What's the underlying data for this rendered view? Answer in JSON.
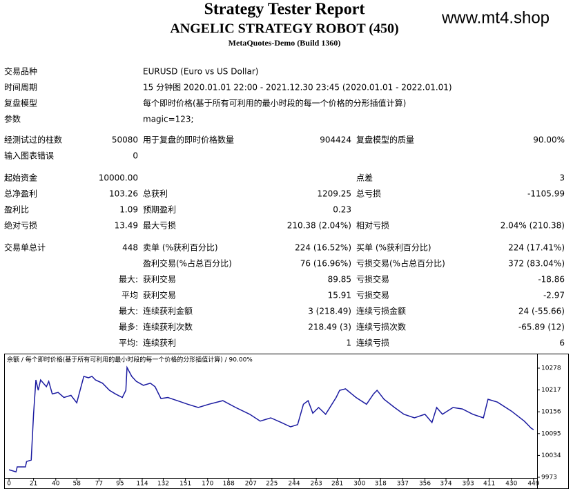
{
  "header": {
    "title": "Strategy Tester Report",
    "subtitle": "ANGELIC STRATEGY ROBOT (450)",
    "build": "MetaQuotes-Demo (Build 1360)",
    "site": "www.mt4.shop"
  },
  "table": {
    "rows": [
      {
        "l1": "交易品种",
        "l2": "EURUSD (Euro vs US Dollar)"
      },
      {
        "l1": "时间周期",
        "l2": "15 分钟图 2020.01.01 22:00 - 2021.12.30 23:45 (2020.01.01 - 2022.01.01)"
      },
      {
        "l1": "复盘模型",
        "l2": "每个即时价格(基于所有可利用的最小时段的每一个价格的分形插值计算)"
      },
      {
        "l1": "参数",
        "l2": "magic=123;"
      },
      {
        "l1": "经测试过的柱数",
        "v1": "50080",
        "l2": "用于复盘的即时价格数量",
        "v2": "904424",
        "l3": "复盘模型的质量",
        "v3": "90.00%"
      },
      {
        "l1": "输入图表错误",
        "v1": "0"
      },
      {
        "l1": "起始资金",
        "v1": "10000.00",
        "l3": "点差",
        "v3": "3"
      },
      {
        "l1": "总净盈利",
        "v1": "103.26",
        "l2": "总获利",
        "v2": "1209.25",
        "l3": "总亏损",
        "v3": "-1105.99"
      },
      {
        "l1": "盈利比",
        "v1": "1.09",
        "l2": "预期盈利",
        "v2": "0.23"
      },
      {
        "l1": "绝对亏损",
        "v1": "13.49",
        "l2": "最大亏损",
        "v2": "210.38 (2.04%)",
        "l3": "相对亏损",
        "v3": "2.04% (210.38)"
      },
      {
        "l1": "交易单总计",
        "v1": "448",
        "l2": "卖单 (%获利百分比)",
        "v2": "224 (16.52%)",
        "l3": "买单 (%获利百分比)",
        "v3": "224 (17.41%)"
      },
      {
        "l2": "盈利交易(%占总百分比)",
        "v2": "76 (16.96%)",
        "l3": "亏损交易(%占总百分比)",
        "v3": "372 (83.04%)"
      },
      {
        "v1": "最大:",
        "l2": "获利交易",
        "v2": "89.85",
        "l3": "亏损交易",
        "v3": "-18.86"
      },
      {
        "v1": "平均",
        "l2": "获利交易",
        "v2": "15.91",
        "l3": "亏损交易",
        "v3": "-2.97"
      },
      {
        "v1": "最大:",
        "l2": "连续获利金额",
        "v2": "3 (218.49)",
        "l3": "连续亏损金额",
        "v3": "24 (-55.66)"
      },
      {
        "v1": "最多:",
        "l2": "连续获利次数",
        "v2": "218.49 (3)",
        "l3": "连续亏损次数",
        "v3": "-65.89 (12)"
      },
      {
        "v1": "平均:",
        "l2": "连续获利",
        "v2": "1",
        "l3": "连续亏损",
        "v3": "6"
      }
    ]
  },
  "chart_data": {
    "type": "line",
    "title": "余额 / 每个即时价格(基于所有可利用的最小时段的每一个价格的分形插值计算) / 90.00%",
    "color": "#1a1aa0",
    "x": [
      0,
      6,
      7,
      14,
      15,
      19,
      21,
      23,
      25,
      27,
      32,
      34,
      37,
      42,
      47,
      53,
      58,
      60,
      64,
      68,
      71,
      74,
      80,
      86,
      91,
      97,
      100,
      101,
      105,
      109,
      115,
      121,
      125,
      130,
      136,
      144,
      153,
      162,
      171,
      183,
      194,
      206,
      215,
      224,
      233,
      241,
      247,
      252,
      256,
      260,
      265,
      271,
      280,
      283,
      288,
      297,
      306,
      312,
      315,
      321,
      330,
      338,
      347,
      356,
      362,
      366,
      371,
      380,
      388,
      397,
      406,
      410,
      418,
      430,
      441,
      447,
      449
    ],
    "values": [
      9994,
      9988,
      10002,
      10002,
      10017,
      10021,
      10149,
      10245,
      10216,
      10245,
      10226,
      10241,
      10206,
      10210,
      10196,
      10202,
      10181,
      10206,
      10255,
      10251,
      10255,
      10245,
      10236,
      10216,
      10206,
      10196,
      10216,
      10280,
      10255,
      10241,
      10230,
      10236,
      10226,
      10193,
      10196,
      10187,
      10177,
      10168,
      10177,
      10187,
      10168,
      10149,
      10130,
      10139,
      10126,
      10114,
      10120,
      10177,
      10187,
      10152,
      10168,
      10149,
      10196,
      10216,
      10220,
      10196,
      10177,
      10206,
      10216,
      10191,
      10168,
      10149,
      10139,
      10149,
      10126,
      10168,
      10149,
      10168,
      10164,
      10149,
      10139,
      10191,
      10183,
      10158,
      10130,
      10110,
      10106
    ],
    "xlim": [
      -3,
      452
    ],
    "ylim": [
      9973,
      10278
    ],
    "xticks": [
      0,
      21,
      40,
      58,
      77,
      95,
      114,
      132,
      151,
      170,
      188,
      207,
      225,
      244,
      263,
      281,
      300,
      318,
      337,
      356,
      374,
      393,
      411,
      430,
      449
    ],
    "yticks": [
      10278,
      10217,
      10156,
      10095,
      10034,
      9973
    ]
  }
}
